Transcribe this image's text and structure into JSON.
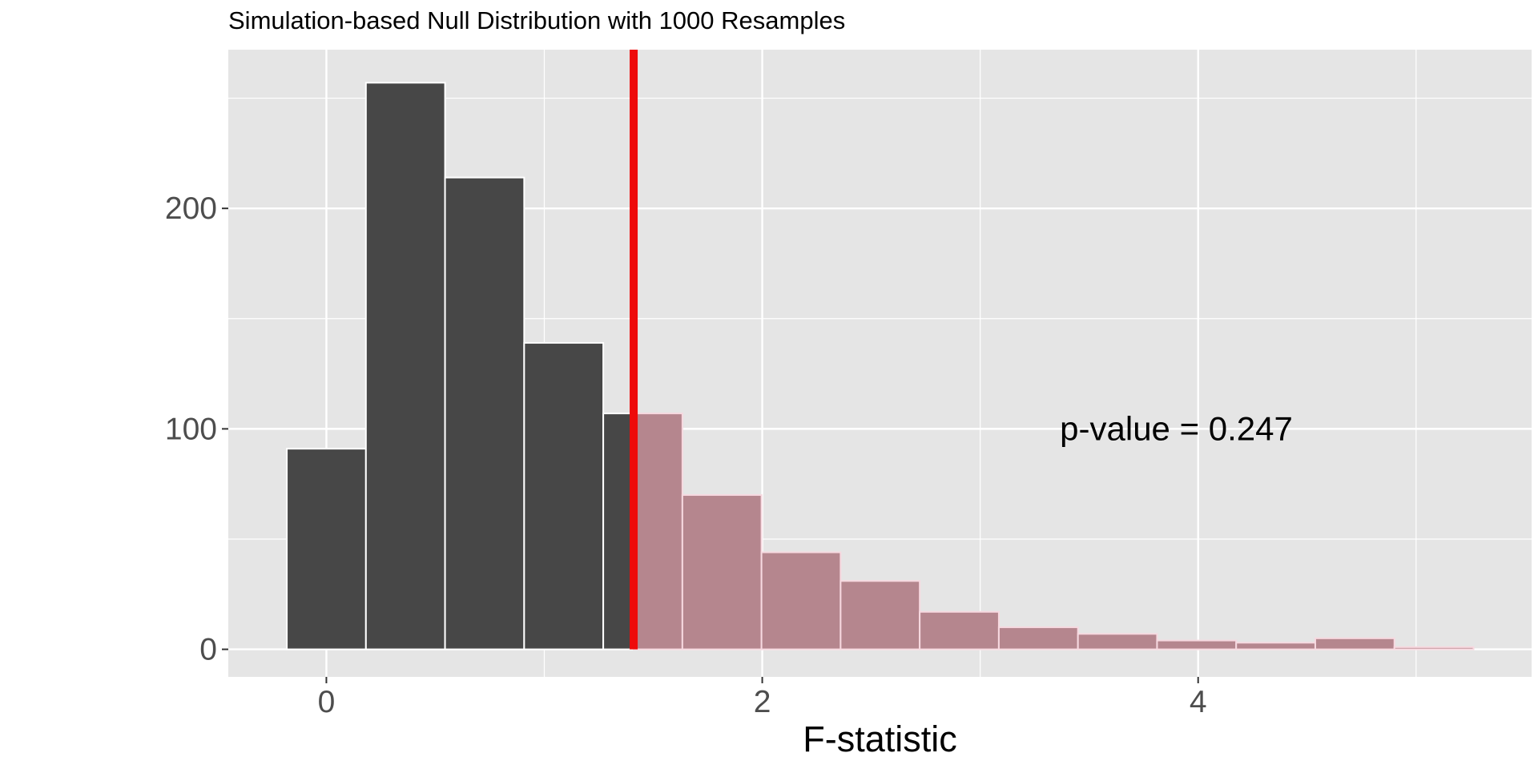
{
  "chart_data": {
    "type": "bar",
    "title": "Simulation-based Null Distribution with 1000 Resamples",
    "xlabel": "F-statistic",
    "ylabel": "",
    "xlim": [
      -0.45,
      5.53
    ],
    "ylim": [
      -12.5,
      272
    ],
    "x_ticks": [
      0,
      2,
      4
    ],
    "x_minor": [
      1,
      3,
      5
    ],
    "y_ticks": [
      0,
      100,
      200
    ],
    "y_minor": [
      50,
      150,
      250
    ],
    "grid": true,
    "bin_width": 0.363,
    "bins": [
      {
        "x": 0.0,
        "count": 91
      },
      {
        "x": 0.363,
        "count": 257
      },
      {
        "x": 0.726,
        "count": 214
      },
      {
        "x": 1.089,
        "count": 139
      },
      {
        "x": 1.452,
        "count": 107
      },
      {
        "x": 1.815,
        "count": 70
      },
      {
        "x": 2.178,
        "count": 44
      },
      {
        "x": 2.541,
        "count": 31
      },
      {
        "x": 2.904,
        "count": 17
      },
      {
        "x": 3.267,
        "count": 10
      },
      {
        "x": 3.63,
        "count": 7
      },
      {
        "x": 3.993,
        "count": 4
      },
      {
        "x": 4.356,
        "count": 3
      },
      {
        "x": 4.719,
        "count": 5
      },
      {
        "x": 5.082,
        "count": 1
      }
    ],
    "observed_stat": 1.41,
    "annotation": {
      "text": "p-value = 0.247",
      "x": 3.9,
      "y": 100
    },
    "colors": {
      "panel": "#e5e5e5",
      "grid": "#ffffff",
      "bar": "#474747",
      "shaded": "#b5868e",
      "shaded_edge": "#f7d9e0",
      "observed_line": "#ee0b0b",
      "axis_text": "#4d4d4d"
    }
  }
}
